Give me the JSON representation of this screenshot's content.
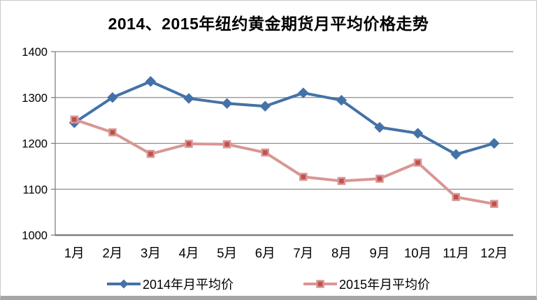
{
  "chart_data": {
    "type": "line",
    "title": "2014、2015年纽约黄金期货月平均价格走势",
    "categories": [
      "1月",
      "2月",
      "3月",
      "4月",
      "5月",
      "6月",
      "7月",
      "8月",
      "9月",
      "10月",
      "11月",
      "12月"
    ],
    "series": [
      {
        "name": "2014年月平均价",
        "values": [
          1245,
          1300,
          1335,
          1298,
          1287,
          1281,
          1310,
          1294,
          1235,
          1222,
          1176,
          1200
        ],
        "color": "#4472A8",
        "marker": "diamond",
        "marker_fill": "#4472A8",
        "marker_border": "#4472A8"
      },
      {
        "name": "2015年月平均价",
        "values": [
          1252,
          1224,
          1177,
          1199,
          1198,
          1180,
          1127,
          1118,
          1123,
          1158,
          1083,
          1068
        ],
        "color": "#D99694",
        "marker": "square",
        "marker_fill": "#C0504D",
        "marker_border": "#D99694"
      }
    ],
    "ylim": [
      1000,
      1400
    ],
    "yticks": [
      1000,
      1100,
      1200,
      1300,
      1400
    ],
    "xlabel": "",
    "ylabel": "",
    "grid": true,
    "legend_position": "bottom",
    "gridline_color": "#8E8E8E",
    "axis_color": "#7F7F7F"
  }
}
